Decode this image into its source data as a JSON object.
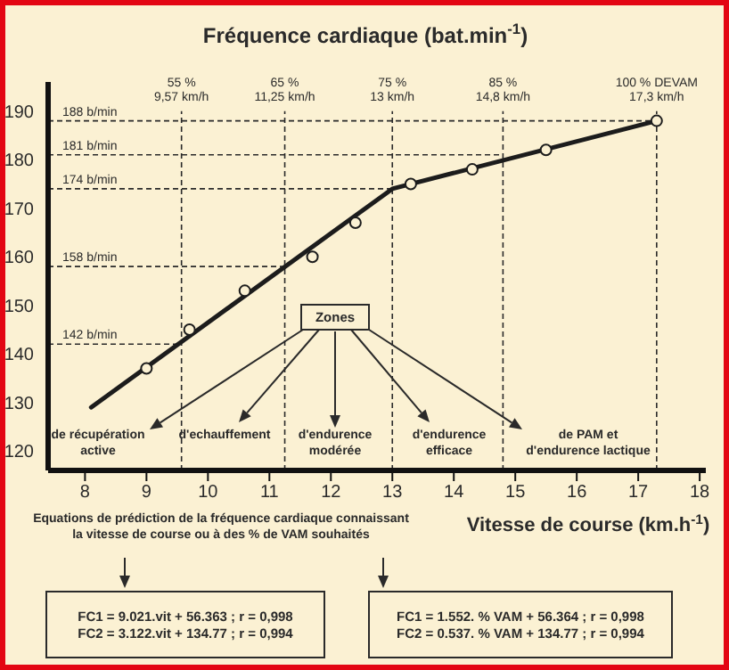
{
  "chart_data": {
    "type": "line",
    "ylabel": "Fréquence cardiaque (bat.min$^{-1}$)",
    "xlabel": "Vitesse de course (km.h$^{-1}$)",
    "xlim": [
      7.4,
      18.1
    ],
    "xticks": [
      8,
      9,
      10,
      11,
      12,
      13,
      14,
      15,
      16,
      17,
      18
    ],
    "ylim": [
      116,
      196
    ],
    "yticks": [
      120,
      130,
      140,
      150,
      160,
      170,
      180,
      190
    ],
    "grid": false,
    "legend": false,
    "series": [
      {
        "color": "#1c1c1c",
        "x": [
          8.1,
          13,
          17.3
        ],
        "values": [
          129,
          174,
          188
        ]
      },
      {
        "type": "scatter",
        "color": "#1c1c1c",
        "marker": "circle",
        "x": [
          9.0,
          9.7,
          10.6,
          11.7,
          12.4,
          13.3,
          14.3,
          15.5,
          17.3
        ],
        "values": [
          137,
          145,
          153,
          160,
          167,
          175,
          178,
          182,
          188
        ]
      }
    ],
    "ref_lines": [
      {
        "axis": "x",
        "value": 9.57,
        "label": "55 %\n9,57 km/h",
        "line_style": "dashed"
      },
      {
        "axis": "x",
        "value": 11.25,
        "label": "65 %\n11,25 km/h",
        "line_style": "dashed"
      },
      {
        "axis": "x",
        "value": 13,
        "label": "75 %\n13 km/h",
        "line_style": "dashed"
      },
      {
        "axis": "x",
        "value": 14.8,
        "label": "85 %\n14,8 km/h",
        "line_style": "dashed"
      },
      {
        "axis": "x",
        "value": 17.3,
        "label": "100 % DEVAM\n17,3 km/h",
        "line_style": "dashed"
      },
      {
        "axis": "y",
        "value": 142,
        "label": "142 b/min",
        "line_style": "dashed"
      },
      {
        "axis": "y",
        "value": 158,
        "label": "158 b/min",
        "line_style": "dashed"
      },
      {
        "axis": "y",
        "value": 174,
        "label": "174 b/min",
        "line_style": "dashed"
      },
      {
        "axis": "y",
        "value": 181,
        "label": "181 b/min",
        "line_style": "dashed"
      },
      {
        "axis": "y",
        "value": 188,
        "label": "188 b/min",
        "line_style": "dashed"
      }
    ],
    "annotations": [
      "Zones",
      "de récupération\nactive",
      "d'echauffement",
      "d'endurence\nmodérée",
      "d'endurence\nefficace",
      "de PAM et\nd'endurence lactique",
      "Equations de prédiction de la fréquence cardiaque connaissant\nla vitesse de course ou à des % de VAM souhaités",
      "FC1 = 9.021.vit + 56.363 ; r = 0,998\nFC2 = 3.122.vit + 134.77 ; r = 0,994",
      "FC1 = 1.552. % VAM + 56.364 ; r = 0,998\nFC2 = 0.537. % VAM + 134.77 ; r = 0,994"
    ]
  }
}
